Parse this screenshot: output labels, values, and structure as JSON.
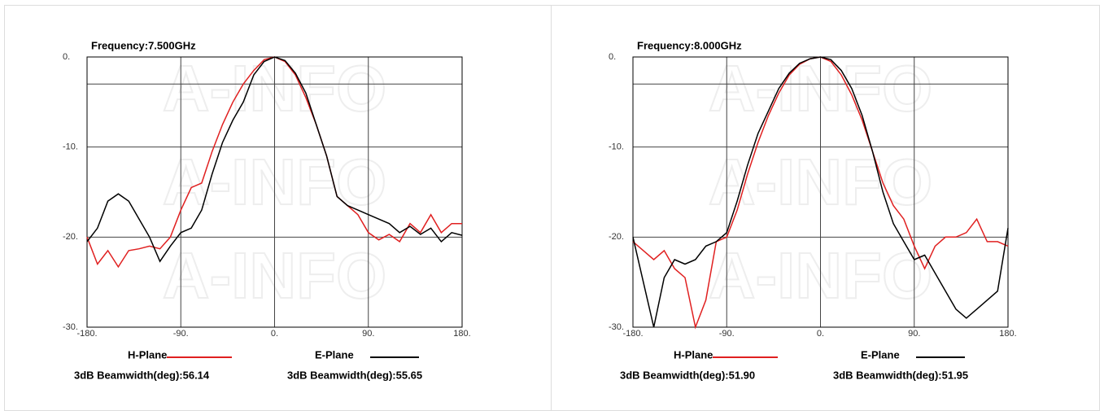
{
  "chart_data": [
    {
      "type": "line",
      "title": "Frequency:7.500GHz",
      "watermark": "A-INFO",
      "x": [
        -180,
        -170,
        -160,
        -150,
        -140,
        -130,
        -120,
        -110,
        -100,
        -90,
        -80,
        -70,
        -60,
        -50,
        -40,
        -30,
        -20,
        -10,
        0,
        10,
        20,
        30,
        40,
        50,
        60,
        70,
        80,
        90,
        100,
        110,
        120,
        130,
        140,
        150,
        160,
        170,
        180
      ],
      "series": [
        {
          "name": "H-Plane",
          "color": "#e02020",
          "beamwidth": "3dB Beamwidth(deg):56.14",
          "values": [
            -20,
            -23,
            -21.5,
            -23.3,
            -21.5,
            -21.3,
            -21,
            -21.3,
            -20,
            -17,
            -14.5,
            -14,
            -10.5,
            -7.5,
            -5,
            -3,
            -1.5,
            -0.3,
            0,
            -0.5,
            -2,
            -4.5,
            -7.5,
            -11,
            -15.5,
            -16.5,
            -17.5,
            -19.5,
            -20.3,
            -19.7,
            -20.5,
            -18.5,
            -19.5,
            -17.5,
            -19.5,
            -18.5,
            -18.5
          ]
        },
        {
          "name": "E-Plane",
          "color": "#000000",
          "beamwidth": "3dB Beamwidth(deg):55.65",
          "values": [
            -20.5,
            -19,
            -16,
            -15.2,
            -16,
            -18,
            -20,
            -22.7,
            -21,
            -19.5,
            -19,
            -17,
            -13,
            -9.5,
            -7,
            -5,
            -2,
            -0.5,
            0,
            -0.4,
            -1.8,
            -4,
            -7.5,
            -11,
            -15.5,
            -16.5,
            -17,
            -17.5,
            -18,
            -18.5,
            -19.5,
            -18.8,
            -19.7,
            -19,
            -20.5,
            -19.5,
            -19.8
          ]
        }
      ],
      "xlim": [
        -180,
        180
      ],
      "ylim": [
        -30,
        0
      ],
      "xticks": [
        {
          "value": -180,
          "label": "-180."
        },
        {
          "value": -90,
          "label": "-90."
        },
        {
          "value": 0,
          "label": "0."
        },
        {
          "value": 90,
          "label": "90."
        },
        {
          "value": 180,
          "label": "180."
        }
      ],
      "yticks": [
        {
          "value": 0,
          "label": "0."
        },
        {
          "value": -10,
          "label": "-10."
        },
        {
          "value": -20,
          "label": "-20."
        },
        {
          "value": -30,
          "label": "-30."
        }
      ],
      "hline": -3,
      "grid": true
    },
    {
      "type": "line",
      "title": "Frequency:8.000GHz",
      "watermark": "A-INFO",
      "x": [
        -180,
        -170,
        -160,
        -150,
        -140,
        -130,
        -120,
        -110,
        -100,
        -90,
        -80,
        -70,
        -60,
        -50,
        -40,
        -30,
        -20,
        -10,
        0,
        10,
        20,
        30,
        40,
        50,
        60,
        70,
        80,
        90,
        100,
        110,
        120,
        130,
        140,
        150,
        160,
        170,
        180
      ],
      "series": [
        {
          "name": "H-Plane",
          "color": "#e02020",
          "beamwidth": "3dB Beamwidth(deg):51.90",
          "values": [
            -20.5,
            -21.5,
            -22.5,
            -21.5,
            -23.5,
            -24.5,
            -30,
            -27,
            -20.5,
            -20,
            -17,
            -13,
            -9.5,
            -6.5,
            -4,
            -2,
            -0.8,
            -0.2,
            0,
            -0.5,
            -2,
            -4.2,
            -7,
            -10.5,
            -14,
            -16.5,
            -18,
            -21,
            -23.5,
            -21,
            -20,
            -20,
            -19.5,
            -18,
            -20.5,
            -20.5,
            -21
          ]
        },
        {
          "name": "E-Plane",
          "color": "#000000",
          "beamwidth": "3dB Beamwidth(deg):51.95",
          "values": [
            -20,
            -25,
            -30,
            -24.5,
            -22.5,
            -23,
            -22.5,
            -21,
            -20.5,
            -19.5,
            -16,
            -12,
            -8.5,
            -6,
            -3.5,
            -1.8,
            -0.7,
            -0.2,
            0,
            -0.3,
            -1.5,
            -3.5,
            -6.5,
            -10.5,
            -15,
            -18.5,
            -20.5,
            -22.5,
            -22,
            -24,
            -26,
            -28,
            -29,
            -28,
            -27,
            -26,
            -19
          ]
        }
      ],
      "xlim": [
        -180,
        180
      ],
      "ylim": [
        -30,
        0
      ],
      "xticks": [
        {
          "value": -180,
          "label": "-180."
        },
        {
          "value": -90,
          "label": "-90."
        },
        {
          "value": 0,
          "label": "0."
        },
        {
          "value": 90,
          "label": "90."
        },
        {
          "value": 180,
          "label": "180."
        }
      ],
      "yticks": [
        {
          "value": 0,
          "label": "0."
        },
        {
          "value": -10,
          "label": "-10."
        },
        {
          "value": -20,
          "label": "-20."
        },
        {
          "value": -30,
          "label": "-30."
        }
      ],
      "hline": -3,
      "grid": true
    }
  ]
}
